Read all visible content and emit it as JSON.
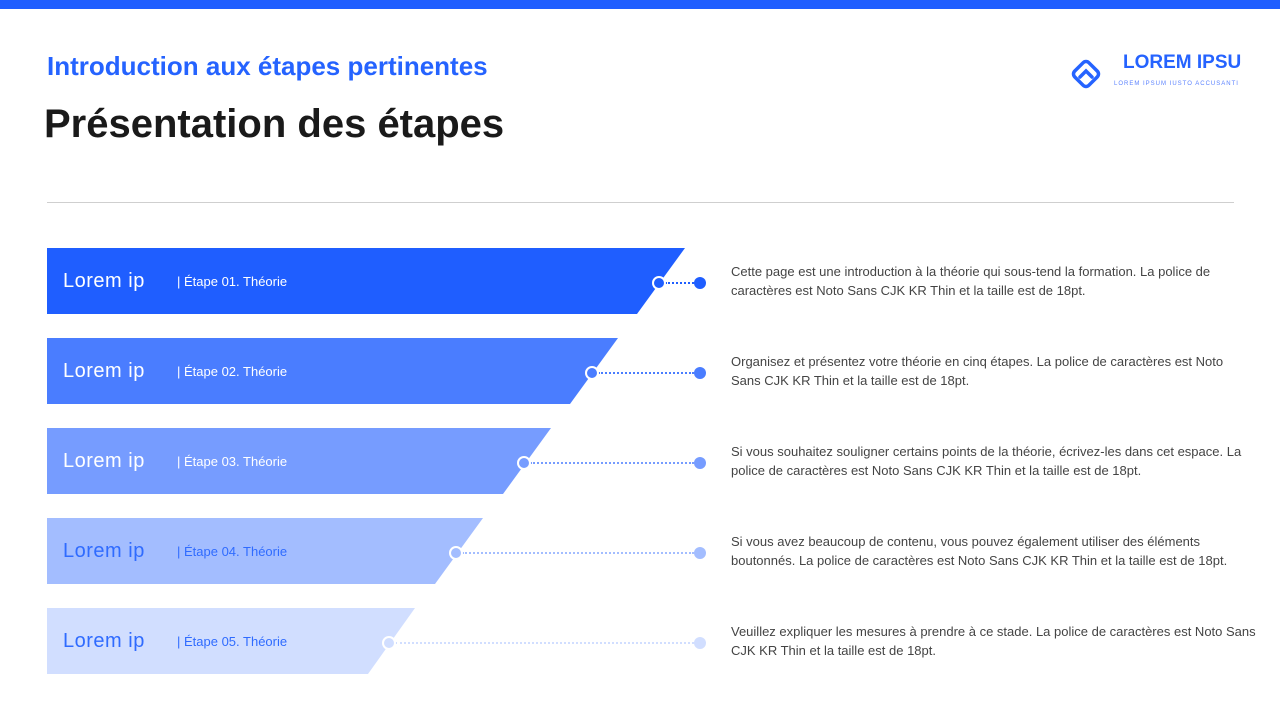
{
  "header": {
    "subtitle": "Introduction aux étapes pertinentes",
    "title": "Présentation des étapes"
  },
  "logo": {
    "name": "LOREM IPSU",
    "tagline": "LOREM IPSUM IUSTO ACCUSANTI",
    "icon": "diamond-chevron-icon"
  },
  "colors": {
    "accent": "#1f5eff"
  },
  "steps": [
    {
      "name": "Lorem ip",
      "step": "| Étape 01. Théorie",
      "description": "Cette page est une introduction à la théorie qui sous-tend la formation. La police de caractères est Noto Sans CJK KR Thin et la taille est de 18pt.",
      "color": "#1f5eff",
      "text_color": "#ffffff"
    },
    {
      "name": "Lorem ip",
      "step": "| Étape 02. Théorie",
      "description": "Organisez et présentez votre théorie en cinq étapes. La police de caractères est Noto Sans CJK KR Thin et la taille est de 18pt.",
      "color": "#4a7dff",
      "text_color": "#ffffff"
    },
    {
      "name": "Lorem ip",
      "step": "| Étape 03. Théorie",
      "description": "Si vous souhaitez souligner certains points de la théorie, écrivez-les dans cet espace. La police de caractères est Noto Sans CJK KR Thin et la taille est de 18pt.",
      "color": "#769cff",
      "text_color": "#ffffff"
    },
    {
      "name": "Lorem ip",
      "step": "| Étape 04. Théorie",
      "description": "Si vous avez beaucoup de contenu, vous pouvez également utiliser des éléments boutonnés. La police de caractères est Noto Sans CJK KR Thin et la taille est de 18pt.",
      "color": "#a3bdff",
      "text_color": "#2f6bff"
    },
    {
      "name": "Lorem ip",
      "step": "| Étape 05. Théorie",
      "description": "Veuillez expliquer les mesures à prendre à ce stade. La police de caractères est Noto Sans CJK KR Thin et la taille est de 18pt.",
      "color": "#d1deff",
      "text_color": "#2f6bff"
    }
  ]
}
